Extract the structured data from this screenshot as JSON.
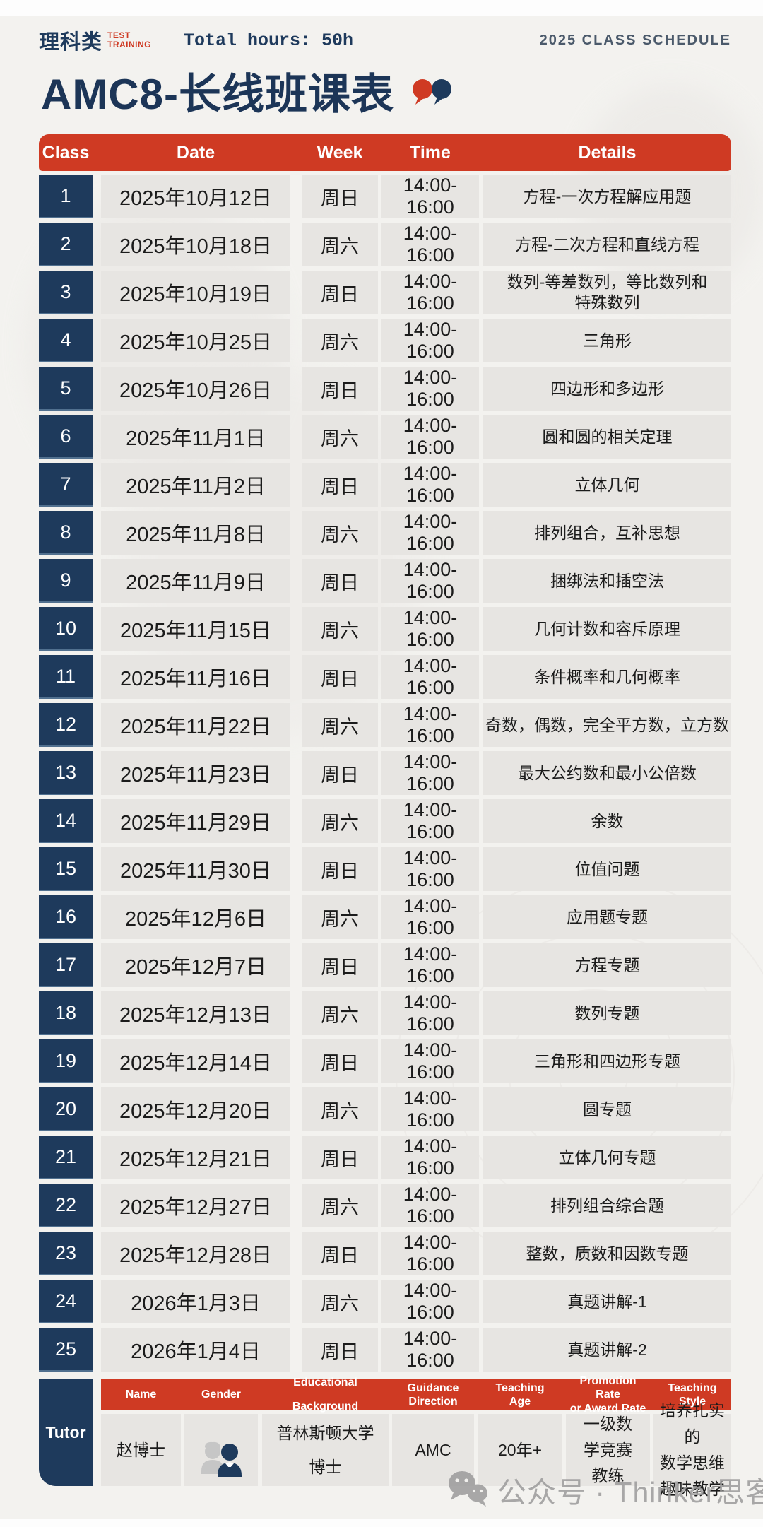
{
  "colors": {
    "navy": "#1e3a5c",
    "red": "#cf3a23",
    "cell_gray": "#e7e5e2",
    "background": "#f3f2ef",
    "watermark_gray": "#9b9b9b"
  },
  "header": {
    "brand": "理科类",
    "brand_sub": "TEST\nTRAINING",
    "total_hours": "Total hours: 50h",
    "schedule_tag": "2025 CLASS SCHEDULE",
    "title": "AMC8-长线班课表"
  },
  "table": {
    "headers": {
      "class": "Class",
      "date": "Date",
      "week": "Week",
      "time": "Time",
      "details": "Details"
    },
    "rows": [
      {
        "no": "1",
        "date": "2025年10月12日",
        "week": "周日",
        "time": "14:00-16:00",
        "details": "方程-一次方程解应用题"
      },
      {
        "no": "2",
        "date": "2025年10月18日",
        "week": "周六",
        "time": "14:00-16:00",
        "details": "方程-二次方程和直线方程"
      },
      {
        "no": "3",
        "date": "2025年10月19日",
        "week": "周日",
        "time": "14:00-16:00",
        "details": "数列-等差数列，等比数列和\n特殊数列"
      },
      {
        "no": "4",
        "date": "2025年10月25日",
        "week": "周六",
        "time": "14:00-16:00",
        "details": "三角形"
      },
      {
        "no": "5",
        "date": "2025年10月26日",
        "week": "周日",
        "time": "14:00-16:00",
        "details": "四边形和多边形"
      },
      {
        "no": "6",
        "date": "2025年11月1日",
        "week": "周六",
        "time": "14:00-16:00",
        "details": "圆和圆的相关定理"
      },
      {
        "no": "7",
        "date": "2025年11月2日",
        "week": "周日",
        "time": "14:00-16:00",
        "details": "立体几何"
      },
      {
        "no": "8",
        "date": "2025年11月8日",
        "week": "周六",
        "time": "14:00-16:00",
        "details": "排列组合，互补思想"
      },
      {
        "no": "9",
        "date": "2025年11月9日",
        "week": "周日",
        "time": "14:00-16:00",
        "details": "捆绑法和插空法"
      },
      {
        "no": "10",
        "date": "2025年11月15日",
        "week": "周六",
        "time": "14:00-16:00",
        "details": "几何计数和容斥原理"
      },
      {
        "no": "11",
        "date": "2025年11月16日",
        "week": "周日",
        "time": "14:00-16:00",
        "details": "条件概率和几何概率"
      },
      {
        "no": "12",
        "date": "2025年11月22日",
        "week": "周六",
        "time": "14:00-16:00",
        "details": "奇数，偶数，完全平方数，立方数"
      },
      {
        "no": "13",
        "date": "2025年11月23日",
        "week": "周日",
        "time": "14:00-16:00",
        "details": "最大公约数和最小公倍数"
      },
      {
        "no": "14",
        "date": "2025年11月29日",
        "week": "周六",
        "time": "14:00-16:00",
        "details": "余数"
      },
      {
        "no": "15",
        "date": "2025年11月30日",
        "week": "周日",
        "time": "14:00-16:00",
        "details": "位值问题"
      },
      {
        "no": "16",
        "date": "2025年12月6日",
        "week": "周六",
        "time": "14:00-16:00",
        "details": "应用题专题"
      },
      {
        "no": "17",
        "date": "2025年12月7日",
        "week": "周日",
        "time": "14:00-16:00",
        "details": "方程专题"
      },
      {
        "no": "18",
        "date": "2025年12月13日",
        "week": "周六",
        "time": "14:00-16:00",
        "details": "数列专题"
      },
      {
        "no": "19",
        "date": "2025年12月14日",
        "week": "周日",
        "time": "14:00-16:00",
        "details": "三角形和四边形专题"
      },
      {
        "no": "20",
        "date": "2025年12月20日",
        "week": "周六",
        "time": "14:00-16:00",
        "details": "圆专题"
      },
      {
        "no": "21",
        "date": "2025年12月21日",
        "week": "周日",
        "time": "14:00-16:00",
        "details": "立体几何专题"
      },
      {
        "no": "22",
        "date": "2025年12月27日",
        "week": "周六",
        "time": "14:00-16:00",
        "details": "排列组合综合题"
      },
      {
        "no": "23",
        "date": "2025年12月28日",
        "week": "周日",
        "time": "14:00-16:00",
        "details": "整数，质数和因数专题"
      },
      {
        "no": "24",
        "date": "2026年1月3日",
        "week": "周六",
        "time": "14:00-16:00",
        "details": "真题讲解-1"
      },
      {
        "no": "25",
        "date": "2026年1月4日",
        "week": "周日",
        "time": "14:00-16:00",
        "details": "真题讲解-2"
      }
    ]
  },
  "tutor": {
    "label": "Tutor",
    "headers": [
      "Name",
      "Gender",
      "Educational\nBackground",
      "Guidance\nDirection",
      "Teaching\nAge",
      "Promotion Rate\nor Award Rate",
      "Teaching\nStyle"
    ],
    "name": "赵博士",
    "gender_icon": "male-female-avatar-icon",
    "education": "普林斯顿大学\n博士",
    "guidance_direction": "AMC",
    "teaching_age": "20年+",
    "promotion_rate": "一级数\n学竞赛\n教练",
    "teaching_style": "培养扎实的\n数学思维\n趣味教学"
  },
  "watermark": {
    "icon": "wechat-icon",
    "text": "公众号 · Thinker思客背提"
  }
}
